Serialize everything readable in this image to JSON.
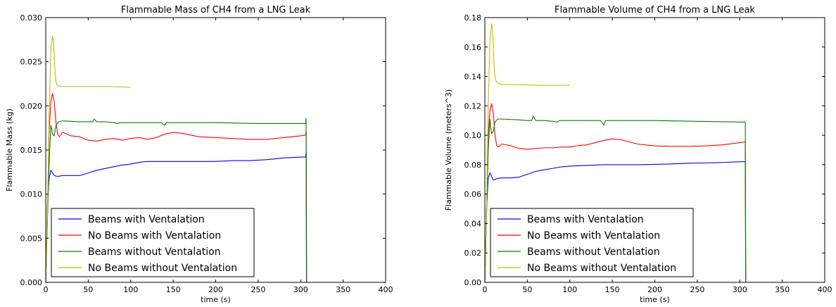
{
  "chart_data": [
    {
      "type": "line",
      "title": "Flammable Mass of CH4 from a LNG Leak",
      "xlabel": "time (s)",
      "ylabel": "Flammable Mass (kg)",
      "xlim": [
        0,
        400
      ],
      "ylim": [
        0,
        0.03
      ],
      "xticks": [
        0,
        50,
        100,
        150,
        200,
        250,
        300,
        350,
        400
      ],
      "yticks": [
        0.0,
        0.005,
        0.01,
        0.015,
        0.02,
        0.025,
        0.03
      ],
      "xtick_labels": [
        "0",
        "50",
        "100",
        "150",
        "200",
        "250",
        "300",
        "350",
        "400"
      ],
      "ytick_labels": [
        "0.000",
        "0.005",
        "0.010",
        "0.015",
        "0.020",
        "0.025",
        "0.030"
      ],
      "grid": false,
      "legend_position": "lower-left",
      "series": [
        {
          "name": "Beams with Ventalation",
          "color": "#0000ff",
          "x": [
            0,
            2,
            4,
            6,
            8,
            10,
            14,
            20,
            30,
            40,
            50,
            60,
            70,
            80,
            90,
            100,
            110,
            120,
            140,
            150,
            160,
            180,
            200,
            220,
            240,
            260,
            280,
            300,
            306,
            306.5,
            307,
            330,
            350,
            367
          ],
          "y": [
            0,
            0.009,
            0.0118,
            0.0127,
            0.0124,
            0.0121,
            0.012,
            0.0121,
            0.0121,
            0.0121,
            0.0124,
            0.0127,
            0.0129,
            0.0131,
            0.0133,
            0.0134,
            0.0136,
            0.0137,
            0.0137,
            0.0137,
            0.0137,
            0.0137,
            0.0137,
            0.0138,
            0.0138,
            0.0139,
            0.0141,
            0.0142,
            0.0142,
            0.0148,
            0,
            0,
            0,
            0
          ]
        },
        {
          "name": "No Beams with Ventalation",
          "color": "#ff0000",
          "x": [
            0,
            2,
            4,
            6,
            8,
            10,
            12,
            14,
            16,
            20,
            30,
            40,
            50,
            60,
            70,
            80,
            90,
            100,
            110,
            120,
            130,
            140,
            150,
            160,
            170,
            180,
            200,
            220,
            240,
            260,
            280,
            300,
            306,
            306.5,
            307
          ],
          "y": [
            0,
            0.008,
            0.0172,
            0.0205,
            0.0214,
            0.0205,
            0.0182,
            0.0168,
            0.0165,
            0.017,
            0.0166,
            0.0165,
            0.0161,
            0.016,
            0.0162,
            0.0163,
            0.0161,
            0.0163,
            0.0164,
            0.0162,
            0.0164,
            0.0168,
            0.017,
            0.0169,
            0.0167,
            0.0165,
            0.0164,
            0.0163,
            0.0162,
            0.0162,
            0.0164,
            0.0166,
            0.0167,
            0.0172,
            0
          ]
        },
        {
          "name": "Beams without Ventalation",
          "color": "#008000",
          "x": [
            0,
            2,
            4,
            6,
            7,
            8,
            10,
            12,
            15,
            20,
            40,
            50,
            55,
            57,
            60,
            70,
            80,
            85,
            88,
            90,
            100,
            120,
            136,
            140,
            142,
            150,
            200,
            250,
            300,
            306,
            306.4,
            306.8,
            310,
            350,
            367
          ],
          "y": [
            0,
            0.007,
            0.0135,
            0.0178,
            0.0174,
            0.0168,
            0.0166,
            0.0178,
            0.0182,
            0.0183,
            0.0182,
            0.0182,
            0.0182,
            0.0185,
            0.0182,
            0.0182,
            0.0181,
            0.018,
            0.0181,
            0.0181,
            0.0181,
            0.0181,
            0.0181,
            0.0178,
            0.0181,
            0.0181,
            0.0181,
            0.018,
            0.018,
            0.018,
            0.0186,
            0,
            0,
            0,
            0
          ]
        },
        {
          "name": "No Beams without Ventalation",
          "color": "#bfbf00",
          "x": [
            0,
            2,
            4,
            6,
            8,
            9,
            10,
            11,
            12,
            14,
            17,
            20,
            30,
            50,
            70,
            100
          ],
          "y": [
            0,
            0.008,
            0.019,
            0.0265,
            0.0279,
            0.0275,
            0.0258,
            0.0238,
            0.0227,
            0.0223,
            0.0222,
            0.0222,
            0.0222,
            0.0222,
            0.0222,
            0.0221
          ]
        }
      ]
    },
    {
      "type": "line",
      "title": "Flammable Volume of CH4 from a LNG Leak",
      "xlabel": "time (s)",
      "ylabel": "Flammable Volume (meters^3)",
      "xlim": [
        0,
        400
      ],
      "ylim": [
        0,
        0.18
      ],
      "xticks": [
        0,
        50,
        100,
        150,
        200,
        250,
        300,
        350,
        400
      ],
      "yticks": [
        0.0,
        0.02,
        0.04,
        0.06,
        0.08,
        0.1,
        0.12,
        0.14,
        0.16,
        0.18
      ],
      "xtick_labels": [
        "0",
        "50",
        "100",
        "150",
        "200",
        "250",
        "300",
        "350",
        "400"
      ],
      "ytick_labels": [
        "0.00",
        "0.02",
        "0.04",
        "0.06",
        "0.08",
        "0.10",
        "0.12",
        "0.14",
        "0.16",
        "0.18"
      ],
      "grid": false,
      "legend_position": "lower-left",
      "series": [
        {
          "name": "Beams with Ventalation",
          "color": "#0000ff",
          "x": [
            0,
            2,
            4,
            6,
            8,
            10,
            14,
            20,
            30,
            40,
            50,
            60,
            70,
            80,
            90,
            100,
            120,
            140,
            160,
            180,
            200,
            220,
            240,
            260,
            280,
            300,
            306,
            306.5,
            307,
            330,
            350,
            367
          ],
          "y": [
            0,
            0.05,
            0.071,
            0.0745,
            0.072,
            0.0695,
            0.0705,
            0.071,
            0.071,
            0.0715,
            0.0735,
            0.0755,
            0.0765,
            0.0775,
            0.0785,
            0.079,
            0.0795,
            0.08,
            0.08,
            0.08,
            0.0802,
            0.0805,
            0.081,
            0.0812,
            0.0815,
            0.082,
            0.082,
            0.082,
            0,
            0,
            0,
            0
          ]
        },
        {
          "name": "No Beams with Ventalation",
          "color": "#ff0000",
          "x": [
            0,
            2,
            4,
            6,
            8,
            10,
            12,
            14,
            16,
            20,
            30,
            40,
            50,
            60,
            70,
            80,
            90,
            100,
            110,
            120,
            130,
            140,
            150,
            160,
            170,
            180,
            200,
            220,
            240,
            260,
            280,
            300,
            306,
            306.5,
            307
          ],
          "y": [
            0,
            0.05,
            0.1,
            0.117,
            0.1215,
            0.115,
            0.1,
            0.093,
            0.092,
            0.094,
            0.093,
            0.091,
            0.0905,
            0.091,
            0.0915,
            0.0915,
            0.092,
            0.092,
            0.093,
            0.0935,
            0.095,
            0.0965,
            0.0975,
            0.097,
            0.0955,
            0.094,
            0.0928,
            0.0925,
            0.0925,
            0.0928,
            0.0935,
            0.095,
            0.0955,
            0.0955,
            0
          ]
        },
        {
          "name": "Beams without Ventalation",
          "color": "#008000",
          "x": [
            0,
            2,
            4,
            6,
            7,
            8,
            10,
            12,
            15,
            20,
            40,
            50,
            55,
            57,
            60,
            70,
            80,
            85,
            88,
            90,
            100,
            120,
            136,
            140,
            142,
            150,
            200,
            250,
            300,
            306,
            306.5,
            307,
            330,
            350,
            367
          ],
          "y": [
            0,
            0.045,
            0.09,
            0.111,
            0.105,
            0.101,
            0.103,
            0.109,
            0.111,
            0.111,
            0.1105,
            0.11,
            0.11,
            0.113,
            0.11,
            0.11,
            0.1095,
            0.109,
            0.11,
            0.11,
            0.11,
            0.11,
            0.11,
            0.107,
            0.11,
            0.11,
            0.11,
            0.1095,
            0.109,
            0.109,
            0.109,
            0,
            0,
            0,
            0
          ]
        },
        {
          "name": "No Beams without Ventalation",
          "color": "#bfbf00",
          "x": [
            0,
            2,
            4,
            6,
            8,
            9,
            10,
            11,
            12,
            14,
            17,
            20,
            30,
            50,
            70,
            100
          ],
          "y": [
            0,
            0.05,
            0.12,
            0.165,
            0.176,
            0.172,
            0.16,
            0.146,
            0.139,
            0.136,
            0.135,
            0.1345,
            0.1345,
            0.1342,
            0.134,
            0.134
          ]
        }
      ]
    }
  ]
}
